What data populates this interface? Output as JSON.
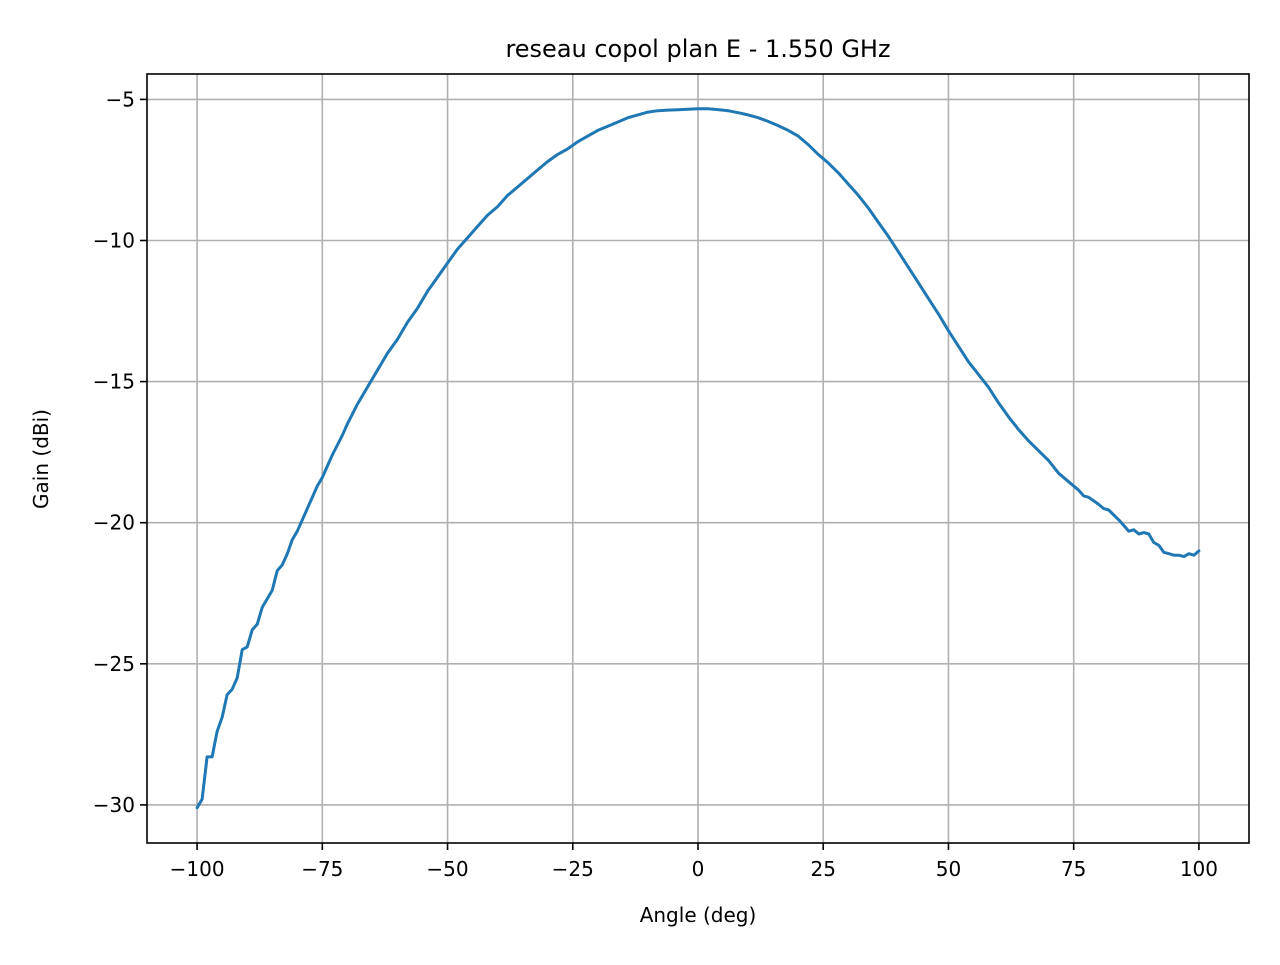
{
  "chart_data": {
    "type": "line",
    "title": "reseau copol plan E - 1.550 GHz",
    "xlabel": "Angle (deg)",
    "ylabel": "Gain (dBi)",
    "xlim": [
      -110,
      110
    ],
    "ylim": [
      -31.35,
      -4.1
    ],
    "xticks": [
      -100,
      -75,
      -50,
      -25,
      0,
      25,
      50,
      75,
      100
    ],
    "xtick_labels": [
      "−100",
      "−75",
      "−50",
      "−25",
      "0",
      "25",
      "50",
      "75",
      "100"
    ],
    "yticks": [
      -30,
      -25,
      -20,
      -15,
      -10,
      -5
    ],
    "ytick_labels": [
      "−30",
      "−25",
      "−20",
      "−15",
      "−10",
      "−5"
    ],
    "grid": true,
    "series": [
      {
        "color": "#1f77b4",
        "x": [
          -100,
          -99,
          -98,
          -97,
          -96,
          -95,
          -94,
          -93,
          -92,
          -91,
          -90,
          -89,
          -88,
          -87,
          -86,
          -85,
          -84,
          -83,
          -82,
          -81,
          -80,
          -78,
          -76,
          -75,
          -73,
          -71,
          -70,
          -68,
          -66,
          -64,
          -62,
          -60,
          -58,
          -56,
          -54,
          -52,
          -50,
          -48,
          -46,
          -44,
          -42,
          -40,
          -38,
          -36,
          -34,
          -32,
          -30,
          -28,
          -26,
          -24,
          -22,
          -20,
          -18,
          -16,
          -14,
          -12,
          -10,
          -8,
          -6,
          -4,
          -2,
          0,
          2,
          4,
          6,
          8,
          10,
          12,
          14,
          16,
          18,
          20,
          22,
          24,
          26,
          28,
          30,
          32,
          34,
          36,
          38,
          40,
          42,
          44,
          46,
          48,
          50,
          52,
          54,
          56,
          58,
          60,
          62,
          64,
          66,
          68,
          70,
          72,
          74,
          76,
          77,
          78,
          80,
          81,
          82,
          84,
          85,
          86,
          87,
          88,
          89,
          90,
          91,
          92,
          93,
          94,
          95,
          96,
          97,
          98,
          99,
          100
        ],
        "values": [
          -30.1,
          -29.8,
          -28.3,
          -28.3,
          -27.4,
          -26.9,
          -26.1,
          -25.9,
          -25.5,
          -24.5,
          -24.4,
          -23.8,
          -23.6,
          -23.0,
          -22.7,
          -22.4,
          -21.7,
          -21.5,
          -21.1,
          -20.6,
          -20.3,
          -19.5,
          -18.7,
          -18.4,
          -17.6,
          -16.9,
          -16.5,
          -15.8,
          -15.2,
          -14.6,
          -14.0,
          -13.5,
          -12.9,
          -12.4,
          -11.8,
          -11.3,
          -10.8,
          -10.3,
          -9.9,
          -9.5,
          -9.1,
          -8.8,
          -8.4,
          -8.1,
          -7.8,
          -7.5,
          -7.2,
          -6.95,
          -6.75,
          -6.5,
          -6.3,
          -6.1,
          -5.95,
          -5.8,
          -5.65,
          -5.55,
          -5.45,
          -5.4,
          -5.38,
          -5.37,
          -5.35,
          -5.33,
          -5.33,
          -5.36,
          -5.4,
          -5.47,
          -5.55,
          -5.65,
          -5.78,
          -5.93,
          -6.1,
          -6.3,
          -6.6,
          -6.95,
          -7.25,
          -7.6,
          -8.0,
          -8.4,
          -8.85,
          -9.35,
          -9.85,
          -10.4,
          -10.95,
          -11.5,
          -12.05,
          -12.6,
          -13.2,
          -13.75,
          -14.3,
          -14.75,
          -15.2,
          -15.75,
          -16.25,
          -16.7,
          -17.1,
          -17.45,
          -17.8,
          -18.25,
          -18.55,
          -18.85,
          -19.05,
          -19.1,
          -19.35,
          -19.5,
          -19.55,
          -19.9,
          -20.1,
          -20.3,
          -20.25,
          -20.4,
          -20.35,
          -20.4,
          -20.7,
          -20.8,
          -21.05,
          -21.1,
          -21.15,
          -21.15,
          -21.2,
          -21.1,
          -21.15,
          -21.0
        ]
      }
    ]
  }
}
